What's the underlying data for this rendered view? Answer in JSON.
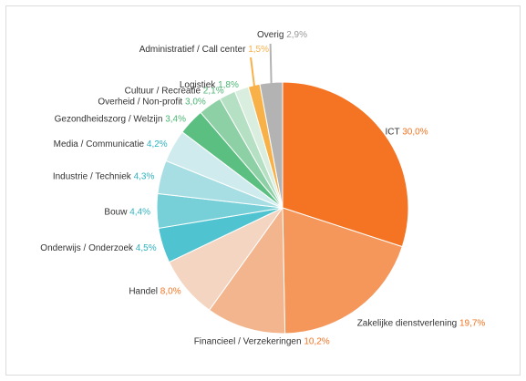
{
  "chart_data": {
    "type": "pie",
    "title": "",
    "slices": [
      {
        "name": "ICT",
        "value": 30.0,
        "value_label": "30,0%",
        "color": "#F47424",
        "label_color": "#F47424"
      },
      {
        "name": "Zakelijke dienstverlening",
        "value": 19.7,
        "value_label": "19,7%",
        "color": "#F5965A",
        "label_color": "#F47424"
      },
      {
        "name": "Financieel / Verzekeringen",
        "value": 10.2,
        "value_label": "10,2%",
        "color": "#F2B58E",
        "label_color": "#F47424"
      },
      {
        "name": "Handel",
        "value": 8.0,
        "value_label": "8,0%",
        "color": "#F4D5C1",
        "label_color": "#F47424"
      },
      {
        "name": "Onderwijs / Onderzoek",
        "value": 4.5,
        "value_label": "4,5%",
        "color": "#4FC3CF",
        "label_color": "#2FB3C1"
      },
      {
        "name": "Bouw",
        "value": 4.4,
        "value_label": "4,4%",
        "color": "#77D0D8",
        "label_color": "#2FB3C1"
      },
      {
        "name": "Industrie / Techniek",
        "value": 4.3,
        "value_label": "4,3%",
        "color": "#A6DEE3",
        "label_color": "#2FB3C1"
      },
      {
        "name": "Media / Communicatie",
        "value": 4.2,
        "value_label": "4,2%",
        "color": "#CFEBEE",
        "label_color": "#2FB3C1"
      },
      {
        "name": "Gezondheidszorg / Welzijn",
        "value": 3.4,
        "value_label": "3,4%",
        "color": "#5BBF82",
        "label_color": "#4CB574"
      },
      {
        "name": "Overheid / Non-profit",
        "value": 3.0,
        "value_label": "3,0%",
        "color": "#8ED0A5",
        "label_color": "#4CB574"
      },
      {
        "name": "Cultuur / Recreatie",
        "value": 2.1,
        "value_label": "2,1%",
        "color": "#B6E0C3",
        "label_color": "#4CB574"
      },
      {
        "name": "Logistiek",
        "value": 1.8,
        "value_label": "1,8%",
        "color": "#D9EEDF",
        "label_color": "#4CB574"
      },
      {
        "name": "Administratief / Call center",
        "value": 1.5,
        "value_label": "1,5%",
        "color": "#F8B049",
        "label_color": "#F8B049"
      },
      {
        "name": "Overig",
        "value": 2.9,
        "value_label": "2,9%",
        "color": "#B3B3B3",
        "label_color": "#999999"
      }
    ],
    "start_angle_deg": 0,
    "direction": "clockwise",
    "legend": "none"
  }
}
